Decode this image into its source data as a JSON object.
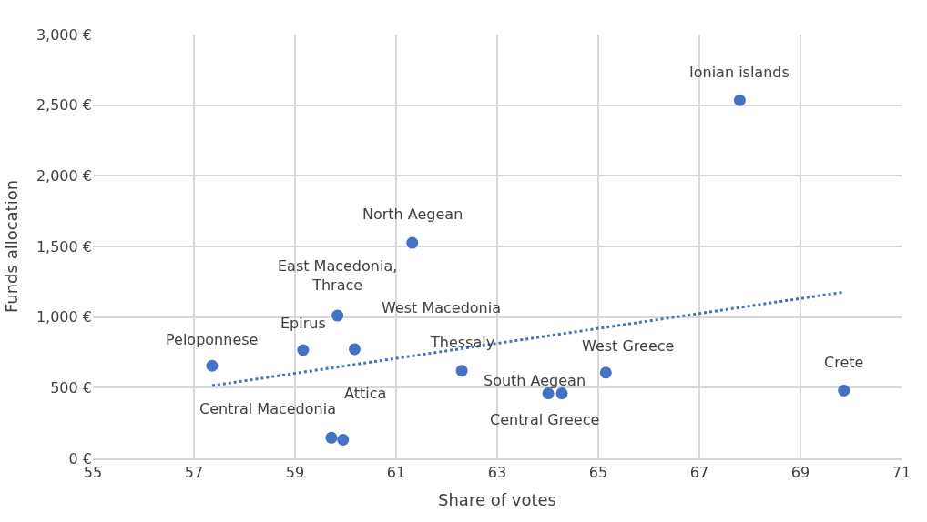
{
  "chart_data": {
    "type": "scatter",
    "xlabel": "Share of votes",
    "ylabel": "Funds allocation",
    "xlim": [
      55,
      71
    ],
    "xticks": [
      55,
      57,
      59,
      61,
      63,
      65,
      67,
      69,
      71
    ],
    "ylim": [
      0,
      3000
    ],
    "yticks": [
      {
        "value": 0,
        "label": "0 €"
      },
      {
        "value": 500,
        "label": "500 €"
      },
      {
        "value": 1000,
        "label": "1,000 €"
      },
      {
        "value": 1500,
        "label": "1,500 €"
      },
      {
        "value": 2000,
        "label": "2,000 €"
      },
      {
        "value": 2500,
        "label": "2,500 €"
      },
      {
        "value": 3000,
        "label": "3,000 €"
      }
    ],
    "grid": true,
    "marker": "circle",
    "series": [
      {
        "color": "#4472c4",
        "x": [
          57.36,
          59.16,
          59.84,
          60.18,
          61.32,
          62.3,
          64.01,
          64.28,
          65.15,
          67.8,
          69.86,
          59.72,
          59.95
        ],
        "values": [
          655,
          766,
          1010,
          773,
          1525,
          620,
          460,
          460,
          606,
          2535,
          480,
          146,
          132
        ]
      },
      {
        "type": "line",
        "color": "#4472c4",
        "line_style": "dotted",
        "marker": "none",
        "x": [
          57.36,
          69.86
        ],
        "values": [
          515,
          1177
        ]
      }
    ],
    "annotations": [
      {
        "text": "Peloponnese",
        "x": 57.36,
        "y": 655
      },
      {
        "text": "Epirus",
        "x": 59.16,
        "y": 766
      },
      {
        "text": "East Macedonia,\nThrace",
        "x": 59.84,
        "y": 1010
      },
      {
        "text": "West Macedonia",
        "x": 60.18,
        "y": 773
      },
      {
        "text": "North Aegean",
        "x": 61.32,
        "y": 1525
      },
      {
        "text": "Thessaly",
        "x": 62.3,
        "y": 620
      },
      {
        "text": "Central Greece",
        "x": 64.01,
        "y": 460
      },
      {
        "text": "South Aegean",
        "x": 64.28,
        "y": 460
      },
      {
        "text": "West Greece",
        "x": 65.15,
        "y": 606
      },
      {
        "text": "Ionian islands",
        "x": 67.8,
        "y": 2535
      },
      {
        "text": "Crete",
        "x": 69.86,
        "y": 480
      },
      {
        "text": "Central Macedonia",
        "x": 59.72,
        "y": 146
      },
      {
        "text": "Attica",
        "x": 59.95,
        "y": 132
      }
    ]
  }
}
